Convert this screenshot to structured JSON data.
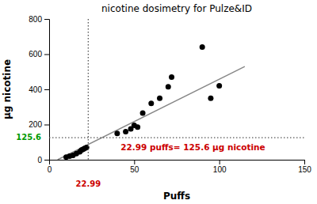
{
  "chart_data": {
    "type": "scatter",
    "title": "nicotine dosimetry for Pulze&ID",
    "xlabel": "Puffs",
    "ylabel": "µg nicotine",
    "xlim": [
      0,
      150
    ],
    "ylim": [
      0,
      800
    ],
    "xticks": [
      0,
      50,
      100,
      150
    ],
    "yticks": [
      0,
      200,
      400,
      600,
      800
    ],
    "series": [
      {
        "type": "scatter",
        "color": "#000000",
        "x": [
          10,
          12,
          14,
          16,
          18,
          19,
          20,
          21,
          22,
          40,
          45,
          48,
          50,
          52,
          55,
          60,
          65,
          70,
          72,
          90,
          95,
          100
        ],
        "values": [
          15,
          20,
          25,
          35,
          45,
          55,
          60,
          65,
          70,
          150,
          160,
          175,
          195,
          185,
          265,
          320,
          350,
          415,
          470,
          640,
          350,
          420
        ]
      },
      {
        "type": "line",
        "color": "#888888",
        "x": [
          5,
          115
        ],
        "values": [
          0,
          530
        ]
      }
    ],
    "reference_lines": [
      {
        "axis": "x",
        "value": 22.99,
        "label": "22.99",
        "color": "#555555",
        "label_color": "#cc0000",
        "line_style": "dotted"
      },
      {
        "axis": "y",
        "value": 125.6,
        "label": "125.6",
        "color": "#555555",
        "label_color": "#009900",
        "line_style": "dotted"
      }
    ],
    "annotations": [
      {
        "text": "22.99 puffs= 125.6 µg nicotine",
        "x": 42,
        "y": 55,
        "color": "#cc0000"
      }
    ]
  }
}
